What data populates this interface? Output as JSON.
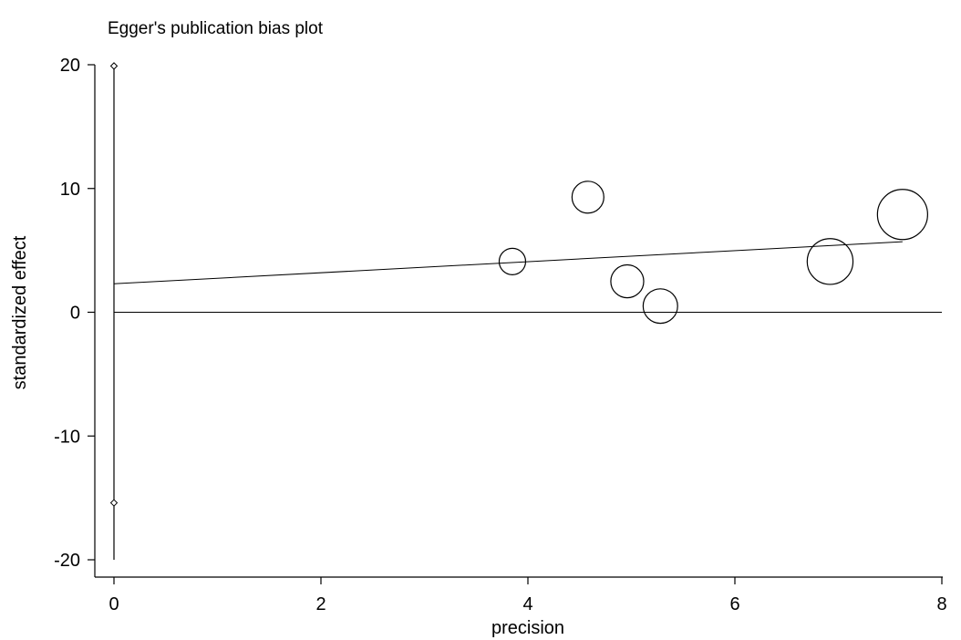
{
  "chart_data": {
    "type": "scatter",
    "title": "Egger's publication bias plot",
    "xlabel": "precision",
    "ylabel": "standardized effect",
    "xlim": [
      0,
      8
    ],
    "ylim": [
      -20,
      20
    ],
    "x_ticks": [
      "0",
      "2",
      "4",
      "6",
      "8"
    ],
    "y_ticks": [
      "20",
      "10",
      "0",
      "-10",
      "-20"
    ],
    "grid": false,
    "legend": "none",
    "studies": [
      {
        "precision": 3.85,
        "effect": 4.1,
        "weight": 1.0
      },
      {
        "precision": 4.58,
        "effect": 9.3,
        "weight": 1.45
      },
      {
        "precision": 4.96,
        "effect": 2.5,
        "weight": 1.55
      },
      {
        "precision": 5.28,
        "effect": 0.5,
        "weight": 1.7
      },
      {
        "precision": 6.92,
        "effect": 4.1,
        "weight": 3.0
      },
      {
        "precision": 7.62,
        "effect": 7.9,
        "weight": 3.6
      }
    ],
    "regression_line": {
      "x": [
        0,
        7.62
      ],
      "y": [
        2.3,
        5.7
      ]
    },
    "reference_line": {
      "x": [
        0,
        8
      ],
      "y": [
        0,
        0
      ]
    },
    "intercept_ci": {
      "x": 0,
      "lower": -15.4,
      "upper": 19.9,
      "line_lower": -20,
      "line_upper": 20
    }
  }
}
